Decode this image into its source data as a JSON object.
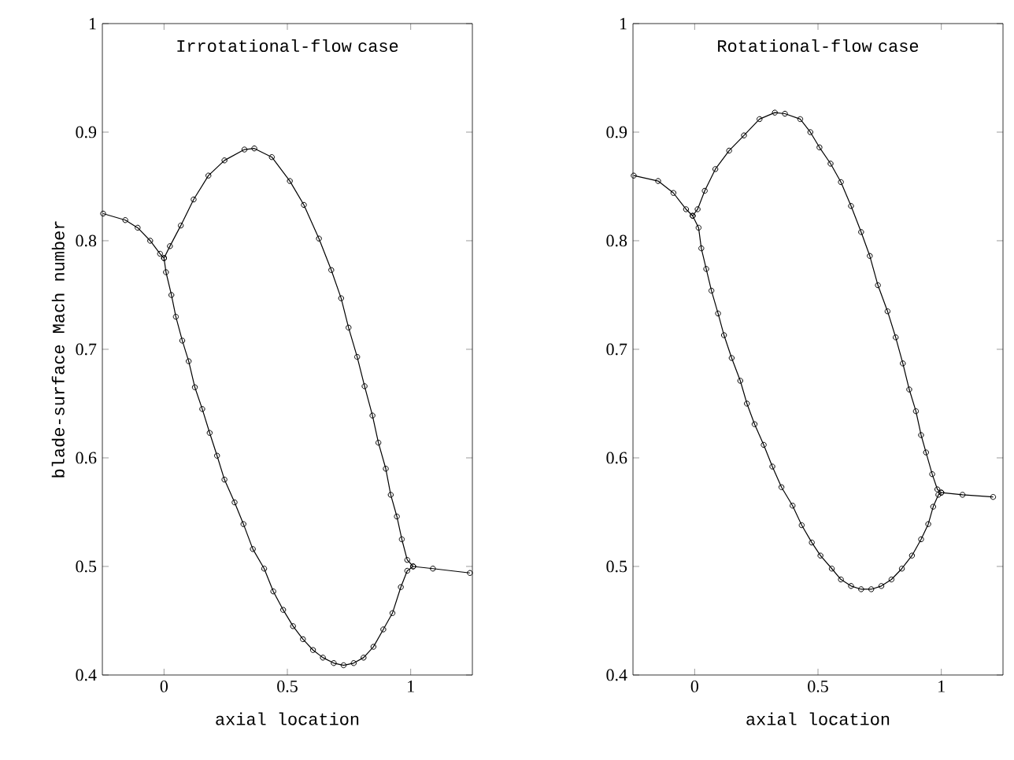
{
  "chart_data": [
    {
      "type": "line",
      "title": "Irrotational-flow case",
      "xlabel": "axial location",
      "ylabel": "blade-surface Mach number",
      "xlim": [
        -0.25,
        1.25
      ],
      "ylim": [
        0.4,
        1
      ],
      "xticks": [
        0,
        0.5,
        1
      ],
      "yticks": [
        0.4,
        0.5,
        0.6,
        0.7,
        0.8,
        0.9,
        1
      ],
      "grid": false,
      "marker": "circle",
      "line_style": "solid",
      "series": [
        {
          "color": "#000000",
          "x": [
            -0.247,
            -0.157,
            -0.107,
            -0.056,
            -0.016,
            0,
            0.024,
            0.068,
            0.12,
            0.18,
            0.245,
            0.326,
            0.366,
            0.437,
            0.51,
            0.567,
            0.628,
            0.678,
            0.718,
            0.748,
            0.783,
            0.813,
            0.845,
            0.869,
            0.899,
            0.919,
            0.944,
            0.964,
            0.986,
            1.01,
            1.09,
            1.24
          ],
          "values": [
            0.825,
            0.819,
            0.812,
            0.8,
            0.788,
            0.784,
            0.795,
            0.814,
            0.838,
            0.86,
            0.874,
            0.884,
            0.885,
            0.877,
            0.855,
            0.833,
            0.802,
            0.773,
            0.747,
            0.72,
            0.693,
            0.666,
            0.639,
            0.614,
            0.59,
            0.566,
            0.546,
            0.525,
            0.506,
            0.5,
            0.498,
            0.494
          ]
        },
        {
          "color": "#000000",
          "x": [
            0,
            0.008,
            0.03,
            0.048,
            0.074,
            0.1,
            0.125,
            0.155,
            0.185,
            0.215,
            0.245,
            0.286,
            0.322,
            0.36,
            0.406,
            0.443,
            0.483,
            0.523,
            0.563,
            0.604,
            0.644,
            0.688,
            0.728,
            0.769,
            0.809,
            0.849,
            0.889,
            0.926,
            0.96,
            0.986,
            1.01
          ],
          "values": [
            0.784,
            0.771,
            0.75,
            0.73,
            0.708,
            0.689,
            0.665,
            0.645,
            0.623,
            0.602,
            0.58,
            0.559,
            0.539,
            0.516,
            0.498,
            0.477,
            0.46,
            0.445,
            0.433,
            0.423,
            0.416,
            0.411,
            0.409,
            0.411,
            0.416,
            0.426,
            0.442,
            0.457,
            0.481,
            0.496,
            0.5
          ]
        }
      ]
    },
    {
      "type": "line",
      "title": "Rotational-flow case",
      "xlabel": "axial location",
      "xlim": [
        -0.25,
        1.25
      ],
      "ylim": [
        0.4,
        1
      ],
      "xticks": [
        0,
        0.5,
        1
      ],
      "yticks": [
        0.4,
        0.5,
        0.6,
        0.7,
        0.8,
        0.9,
        1
      ],
      "grid": false,
      "marker": "circle",
      "line_style": "solid",
      "series": [
        {
          "color": "#000000",
          "x": [
            -0.247,
            -0.148,
            -0.086,
            -0.035,
            -0.008,
            0.012,
            0.041,
            0.084,
            0.14,
            0.2,
            0.263,
            0.325,
            0.366,
            0.428,
            0.469,
            0.506,
            0.551,
            0.593,
            0.634,
            0.675,
            0.71,
            0.743,
            0.782,
            0.815,
            0.844,
            0.87,
            0.897,
            0.918,
            0.938,
            0.963,
            0.984,
            1.0,
            1.086,
            1.21
          ],
          "values": [
            0.86,
            0.855,
            0.844,
            0.829,
            0.823,
            0.829,
            0.846,
            0.866,
            0.883,
            0.897,
            0.912,
            0.918,
            0.917,
            0.912,
            0.9,
            0.886,
            0.871,
            0.854,
            0.832,
            0.808,
            0.786,
            0.759,
            0.735,
            0.711,
            0.687,
            0.663,
            0.643,
            0.621,
            0.605,
            0.585,
            0.571,
            0.568,
            0.566,
            0.564
          ]
        },
        {
          "color": "#000000",
          "x": [
            -0.008,
            0.016,
            0.027,
            0.047,
            0.068,
            0.095,
            0.119,
            0.15,
            0.185,
            0.212,
            0.243,
            0.28,
            0.315,
            0.352,
            0.397,
            0.434,
            0.475,
            0.51,
            0.556,
            0.593,
            0.634,
            0.675,
            0.716,
            0.757,
            0.798,
            0.84,
            0.881,
            0.918,
            0.947,
            0.967,
            0.988,
            1.0
          ],
          "values": [
            0.823,
            0.812,
            0.793,
            0.774,
            0.754,
            0.733,
            0.713,
            0.692,
            0.671,
            0.65,
            0.631,
            0.612,
            0.592,
            0.573,
            0.556,
            0.538,
            0.522,
            0.51,
            0.498,
            0.488,
            0.482,
            0.479,
            0.479,
            0.482,
            0.488,
            0.498,
            0.51,
            0.525,
            0.539,
            0.555,
            0.566,
            0.568
          ]
        }
      ]
    }
  ]
}
